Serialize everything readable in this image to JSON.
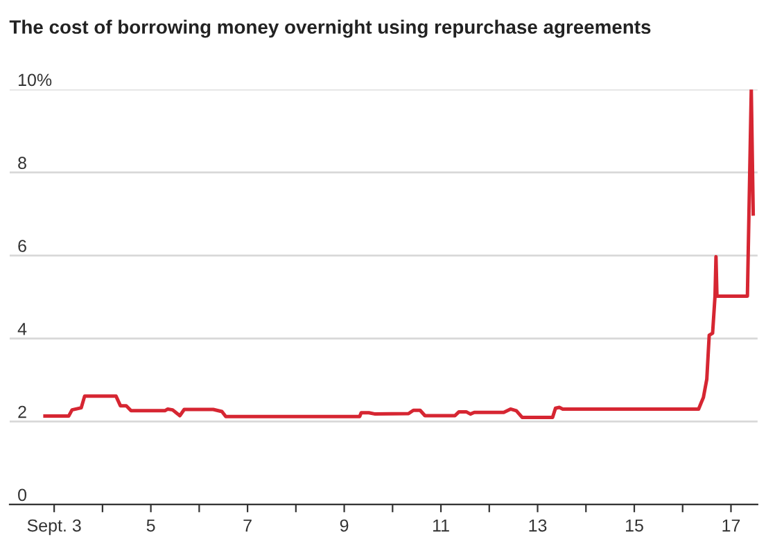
{
  "chart_data": {
    "type": "line",
    "title": "The cost of borrowing money overnight using repurchase agreements",
    "x": [
      2.81,
      3.3,
      3.37,
      3.56,
      3.63,
      4.28,
      4.37,
      4.49,
      4.59,
      5.29,
      5.35,
      5.45,
      5.6,
      5.69,
      6.29,
      6.47,
      6.55,
      9.32,
      9.35,
      9.51,
      9.64,
      10.33,
      10.43,
      10.57,
      10.67,
      11.29,
      11.37,
      11.53,
      11.61,
      11.69,
      12.3,
      12.44,
      12.56,
      12.68,
      13.31,
      13.37,
      13.45,
      13.52,
      16.33,
      16.38,
      16.43,
      16.5,
      16.55,
      16.62,
      16.67,
      16.69,
      16.71,
      17.34,
      17.42,
      17.44,
      17.46
    ],
    "series": [
      {
        "color": "#d62632",
        "values": [
          2.13,
          2.13,
          2.28,
          2.33,
          2.61,
          2.61,
          2.38,
          2.38,
          2.26,
          2.26,
          2.3,
          2.28,
          2.14,
          2.29,
          2.29,
          2.24,
          2.12,
          2.12,
          2.21,
          2.21,
          2.18,
          2.19,
          2.27,
          2.27,
          2.14,
          2.14,
          2.23,
          2.23,
          2.18,
          2.22,
          2.22,
          2.3,
          2.26,
          2.1,
          2.1,
          2.32,
          2.34,
          2.3,
          2.3,
          2.44,
          2.58,
          3.02,
          4.08,
          4.13,
          5.02,
          5.97,
          5.02,
          5.02,
          10.0,
          8.5,
          7.0
        ]
      }
    ],
    "xlim": [
      2.08,
      17.55
    ],
    "xticks": [
      {
        "value": 3,
        "label": "Sept. 3"
      },
      {
        "value": 4,
        "label": null
      },
      5,
      {
        "value": 6,
        "label": null
      },
      7,
      {
        "value": 8,
        "label": null
      },
      9,
      {
        "value": 10,
        "label": null
      },
      11,
      {
        "value": 12,
        "label": null
      },
      13,
      {
        "value": 14,
        "label": null
      },
      15,
      {
        "value": 16,
        "label": null
      },
      17
    ],
    "ylim": [
      0,
      10
    ],
    "yticks": [
      0,
      2,
      4,
      6,
      8,
      {
        "value": 10,
        "label": "10%"
      }
    ],
    "grid": "y",
    "marker": "none",
    "line_style": "solid",
    "legend": false
  }
}
